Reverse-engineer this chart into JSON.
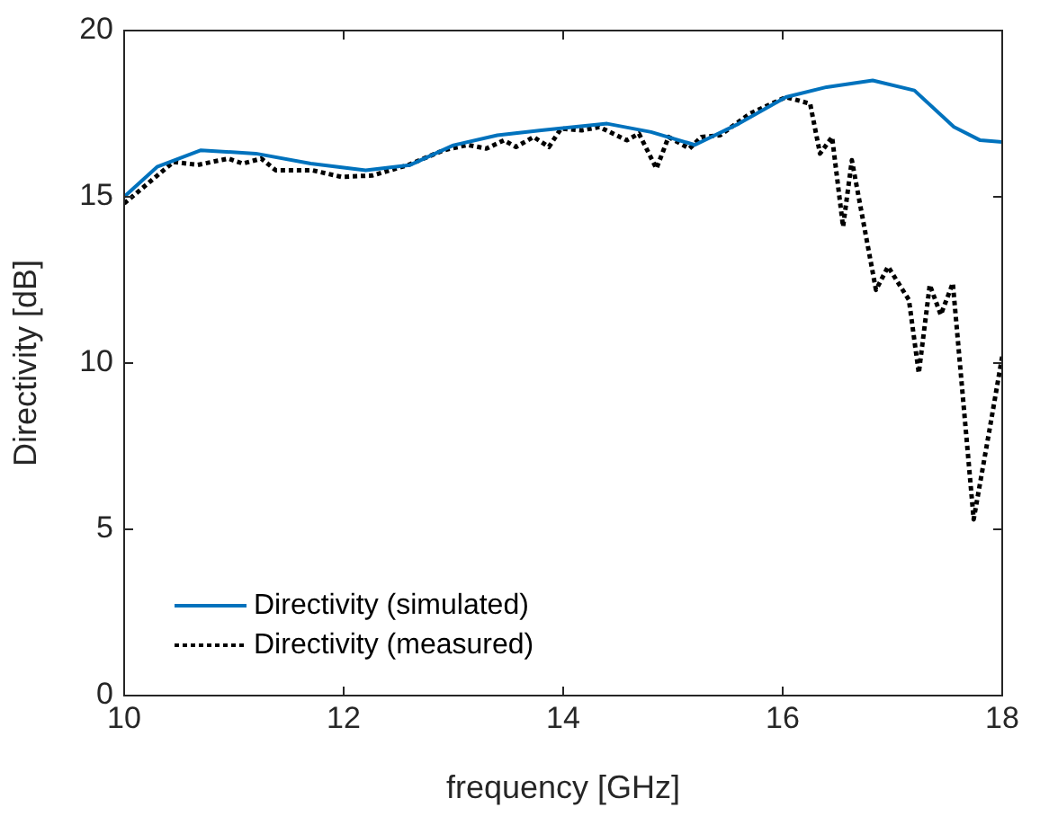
{
  "chart_data": {
    "type": "line",
    "xlabel": "frequency [GHz]",
    "ylabel": "Directivity [dB]",
    "xlim": [
      10,
      18
    ],
    "xticks": [
      10,
      12,
      14,
      16,
      18
    ],
    "ylim": [
      0,
      20
    ],
    "yticks": [
      0,
      5,
      10,
      15,
      20
    ],
    "grid": false,
    "legend": "bottom left",
    "marker": "none",
    "series": [
      {
        "name": "Directivity (simulated)",
        "color": "#0072bd",
        "line_style": "solid",
        "x": [
          10,
          10.3,
          10.7,
          11.2,
          11.7,
          12.2,
          12.6,
          13.0,
          13.4,
          13.8,
          14.4,
          14.8,
          15.2,
          15.6,
          16.03,
          16.4,
          16.82,
          17.2,
          17.56,
          17.8,
          18
        ],
        "values": [
          15.0,
          15.9,
          16.4,
          16.3,
          16.0,
          15.8,
          15.95,
          16.55,
          16.85,
          17.0,
          17.2,
          16.95,
          16.56,
          17.2,
          18.0,
          18.3,
          18.5,
          18.2,
          17.1,
          16.7,
          16.65
        ]
      },
      {
        "name": "Directivity (measured)",
        "color": "#000000",
        "line_style": "dotted",
        "x": [
          10,
          10.45,
          10.67,
          10.95,
          11.08,
          11.25,
          11.38,
          11.71,
          11.98,
          12.26,
          12.59,
          12.91,
          13.13,
          13.3,
          13.46,
          13.57,
          13.73,
          13.87,
          13.98,
          14.17,
          14.33,
          14.58,
          14.69,
          14.85,
          14.96,
          15.15,
          15.26,
          15.43,
          15.7,
          16.03,
          16.25,
          16.34,
          16.45,
          16.55,
          16.63,
          16.85,
          16.96,
          17.15,
          17.24,
          17.34,
          17.44,
          17.55,
          17.74,
          17.89,
          18
        ],
        "values": [
          14.8,
          16.05,
          15.96,
          16.15,
          16.0,
          16.15,
          15.8,
          15.8,
          15.6,
          15.64,
          15.96,
          16.4,
          16.56,
          16.45,
          16.7,
          16.5,
          16.8,
          16.5,
          17.05,
          17.0,
          17.1,
          16.7,
          16.9,
          15.85,
          16.8,
          16.45,
          16.8,
          16.85,
          17.5,
          18.0,
          17.8,
          16.3,
          16.8,
          14.1,
          16.1,
          12.2,
          12.9,
          11.9,
          9.7,
          12.35,
          11.45,
          12.4,
          5.3,
          8.1,
          10.2
        ]
      }
    ]
  }
}
